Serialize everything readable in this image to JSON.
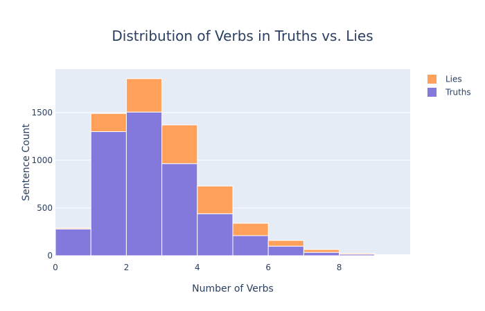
{
  "chart_data": {
    "type": "bar",
    "barmode": "stack",
    "title": "Distribution of Verbs in Truths vs. Lies",
    "xlabel": "Number of Verbs",
    "ylabel": "Sentence Count",
    "bins": [
      {
        "start": 0,
        "end": 1
      },
      {
        "start": 1,
        "end": 2
      },
      {
        "start": 2,
        "end": 3
      },
      {
        "start": 3,
        "end": 4
      },
      {
        "start": 4,
        "end": 5
      },
      {
        "start": 5,
        "end": 6
      },
      {
        "start": 6,
        "end": 7
      },
      {
        "start": 7,
        "end": 8
      },
      {
        "start": 8,
        "end": 9
      },
      {
        "start": 9,
        "end": 10
      }
    ],
    "series": [
      {
        "name": "Truths",
        "color": "#8378db",
        "values": [
          280,
          1300,
          1505,
          965,
          440,
          210,
          100,
          35,
          15,
          5
        ]
      },
      {
        "name": "Lies",
        "color": "#ffa15a",
        "values": [
          10,
          190,
          350,
          405,
          290,
          130,
          60,
          30,
          10,
          5
        ]
      }
    ],
    "xlim": [
      0,
      10
    ],
    "ylim": [
      0,
      1955
    ],
    "x_ticks": [
      0,
      2,
      4,
      6,
      8
    ],
    "x_tick_labels": [
      "0",
      "2",
      "4",
      "6",
      "8"
    ],
    "y_ticks": [
      0,
      500,
      1000,
      1500
    ],
    "y_tick_labels": [
      "0",
      "500",
      "1000",
      "1500"
    ],
    "grid": true,
    "legend": {
      "position": "top-right",
      "items": [
        {
          "name": "Lies",
          "color": "#ffa15a"
        },
        {
          "name": "Truths",
          "color": "#8378db"
        }
      ]
    },
    "plot_background": "#e5ecf6"
  }
}
